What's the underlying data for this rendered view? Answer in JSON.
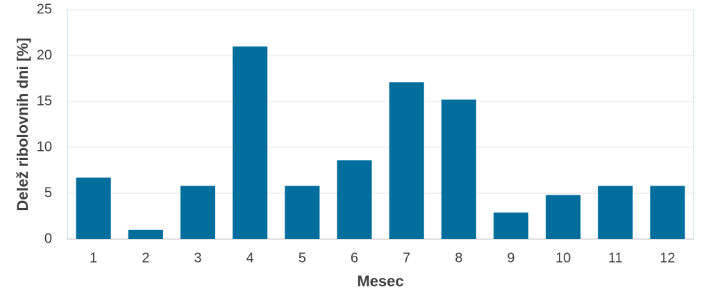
{
  "chart_data": {
    "type": "bar",
    "x_label": "Mesec",
    "y_label": "Delež ribolovnih dni [%]",
    "categories": [
      "1",
      "2",
      "3",
      "4",
      "5",
      "6",
      "7",
      "8",
      "9",
      "10",
      "11",
      "12"
    ],
    "values": [
      6.7,
      1.0,
      5.8,
      21.0,
      5.8,
      8.6,
      17.1,
      15.2,
      2.9,
      4.8,
      5.8,
      5.8
    ],
    "color": "#006e9c",
    "ylim": [
      0,
      25
    ],
    "yticks": [
      0,
      5,
      10,
      15,
      20,
      25
    ],
    "grid": true
  }
}
